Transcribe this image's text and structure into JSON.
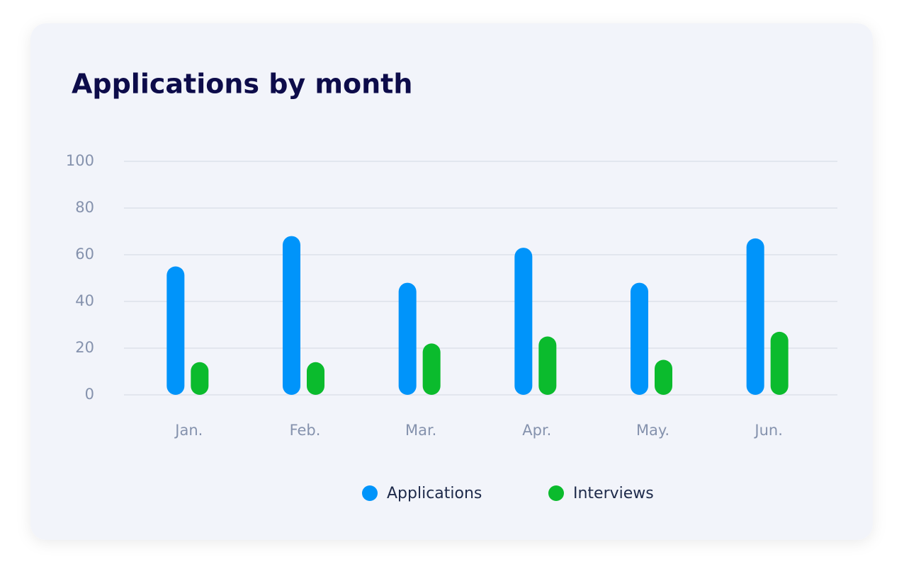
{
  "chart_data": {
    "type": "bar",
    "title": "Applications by month",
    "categories": [
      "Jan.",
      "Feb.",
      "Mar.",
      "Apr.",
      "May.",
      "Jun."
    ],
    "series": [
      {
        "name": "Applications",
        "color": "#0094fa",
        "values": [
          55,
          68,
          48,
          63,
          48,
          67
        ]
      },
      {
        "name": "Interviews",
        "color": "#0bbb2d",
        "values": [
          14,
          14,
          22,
          25,
          15,
          27
        ]
      }
    ],
    "ylim": [
      0,
      100
    ],
    "yticks": [
      0,
      20,
      40,
      60,
      80,
      100
    ],
    "grid": true,
    "legend": "bottom"
  }
}
